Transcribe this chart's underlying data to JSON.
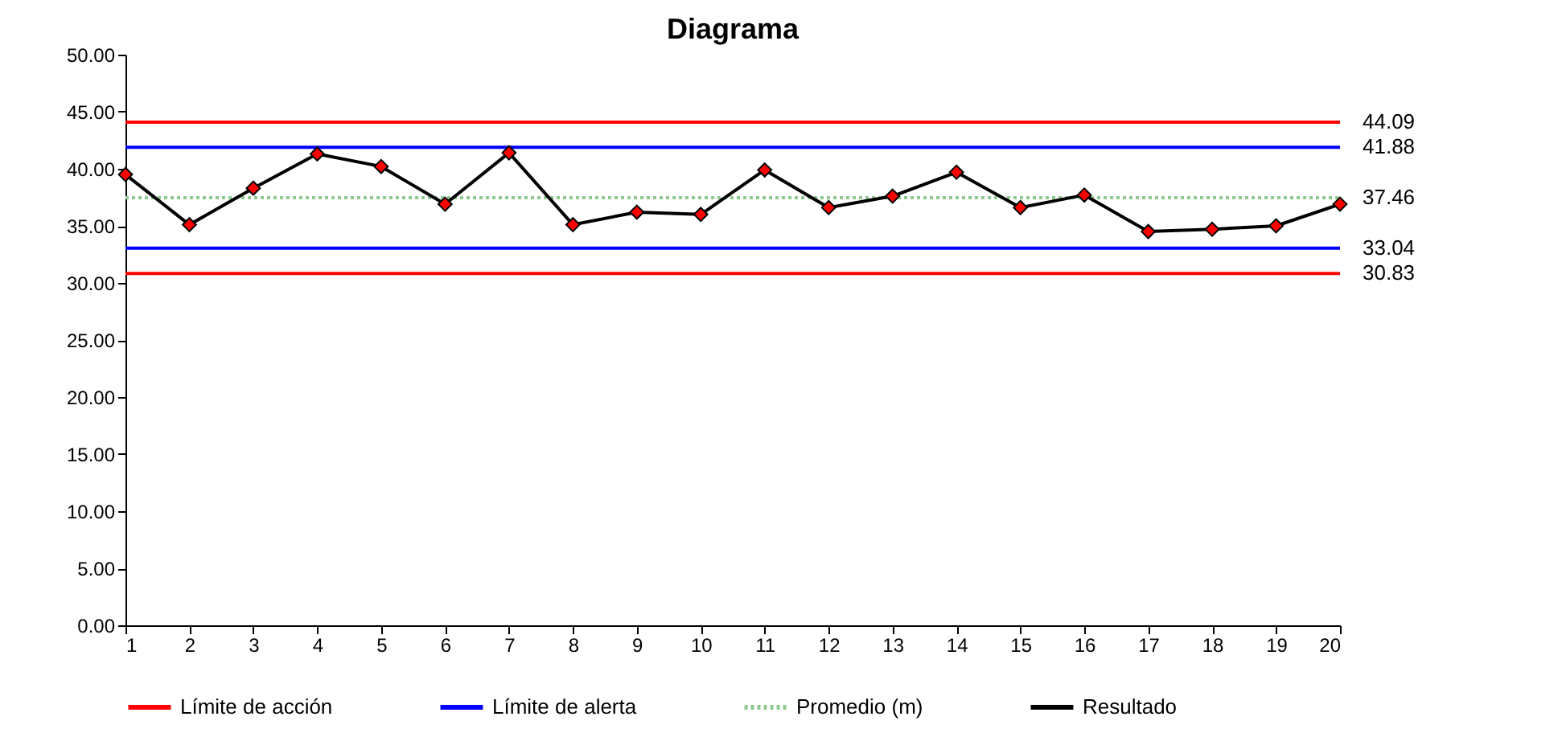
{
  "chart_data": {
    "type": "line",
    "title": "Diagrama",
    "x": [
      1,
      2,
      3,
      4,
      5,
      6,
      7,
      8,
      9,
      10,
      11,
      12,
      13,
      14,
      15,
      16,
      17,
      18,
      19,
      20
    ],
    "xlim": [
      1,
      20
    ],
    "xticks": [
      1,
      2,
      3,
      4,
      5,
      6,
      7,
      8,
      9,
      10,
      11,
      12,
      13,
      14,
      15,
      16,
      17,
      18,
      19,
      20
    ],
    "ylim": [
      0,
      50
    ],
    "yticks": [
      {
        "value": 0,
        "label": "0.00"
      },
      {
        "value": 5,
        "label": "5.00"
      },
      {
        "value": 10,
        "label": "10.00"
      },
      {
        "value": 15,
        "label": "15.00"
      },
      {
        "value": 20,
        "label": "20.00"
      },
      {
        "value": 25,
        "label": "25.00"
      },
      {
        "value": 30,
        "label": "30.00"
      },
      {
        "value": 35,
        "label": "35.00"
      },
      {
        "value": 40,
        "label": "40.00"
      },
      {
        "value": 45,
        "label": "45.00"
      },
      {
        "value": 50,
        "label": "50.00"
      }
    ],
    "grid": false,
    "legend": "bottom",
    "series": [
      {
        "name": "Límite de acción",
        "color": "#ff0000",
        "marker": "none",
        "line_style": "solid",
        "values": [
          44.09,
          44.09,
          44.09,
          44.09,
          44.09,
          44.09,
          44.09,
          44.09,
          44.09,
          44.09,
          44.09,
          44.09,
          44.09,
          44.09,
          44.09,
          44.09,
          44.09,
          44.09,
          44.09,
          44.09
        ],
        "value_labels": [
          null,
          null,
          null,
          null,
          null,
          null,
          null,
          null,
          null,
          null,
          null,
          null,
          null,
          null,
          null,
          null,
          null,
          null,
          null,
          "44.09"
        ]
      },
      {
        "color": "#ff0000",
        "marker": "none",
        "line_style": "solid",
        "values": [
          30.83,
          30.83,
          30.83,
          30.83,
          30.83,
          30.83,
          30.83,
          30.83,
          30.83,
          30.83,
          30.83,
          30.83,
          30.83,
          30.83,
          30.83,
          30.83,
          30.83,
          30.83,
          30.83,
          30.83
        ],
        "value_labels": [
          null,
          null,
          null,
          null,
          null,
          null,
          null,
          null,
          null,
          null,
          null,
          null,
          null,
          null,
          null,
          null,
          null,
          null,
          null,
          "30.83"
        ]
      },
      {
        "name": "Límite de alerta",
        "color": "#0000ff",
        "marker": "none",
        "line_style": "solid",
        "values": [
          41.88,
          41.88,
          41.88,
          41.88,
          41.88,
          41.88,
          41.88,
          41.88,
          41.88,
          41.88,
          41.88,
          41.88,
          41.88,
          41.88,
          41.88,
          41.88,
          41.88,
          41.88,
          41.88,
          41.88
        ],
        "value_labels": [
          null,
          null,
          null,
          null,
          null,
          null,
          null,
          null,
          null,
          null,
          null,
          null,
          null,
          null,
          null,
          null,
          null,
          null,
          null,
          "41.88"
        ]
      },
      {
        "color": "#0000ff",
        "marker": "none",
        "line_style": "solid",
        "values": [
          33.04,
          33.04,
          33.04,
          33.04,
          33.04,
          33.04,
          33.04,
          33.04,
          33.04,
          33.04,
          33.04,
          33.04,
          33.04,
          33.04,
          33.04,
          33.04,
          33.04,
          33.04,
          33.04,
          33.04
        ],
        "value_labels": [
          null,
          null,
          null,
          null,
          null,
          null,
          null,
          null,
          null,
          null,
          null,
          null,
          null,
          null,
          null,
          null,
          null,
          null,
          null,
          "33.04"
        ]
      },
      {
        "name": "Promedio (m)",
        "color": "#8fc98f",
        "marker": "none",
        "line_style": "dotted",
        "values": [
          37.46,
          37.46,
          37.46,
          37.46,
          37.46,
          37.46,
          37.46,
          37.46,
          37.46,
          37.46,
          37.46,
          37.46,
          37.46,
          37.46,
          37.46,
          37.46,
          37.46,
          37.46,
          37.46,
          37.46
        ],
        "value_labels": [
          null,
          null,
          null,
          null,
          null,
          null,
          null,
          null,
          null,
          null,
          null,
          null,
          null,
          null,
          null,
          null,
          null,
          null,
          null,
          "37.46"
        ]
      },
      {
        "name": "Resultado",
        "color": "#000000",
        "marker": "diamond",
        "line_style": "solid",
        "values": [
          39.5,
          35.1,
          38.3,
          41.3,
          40.2,
          36.9,
          41.4,
          35.1,
          36.2,
          36.0,
          39.9,
          36.6,
          37.6,
          39.7,
          36.6,
          37.7,
          34.5,
          34.7,
          35.0,
          36.9
        ]
      }
    ]
  }
}
